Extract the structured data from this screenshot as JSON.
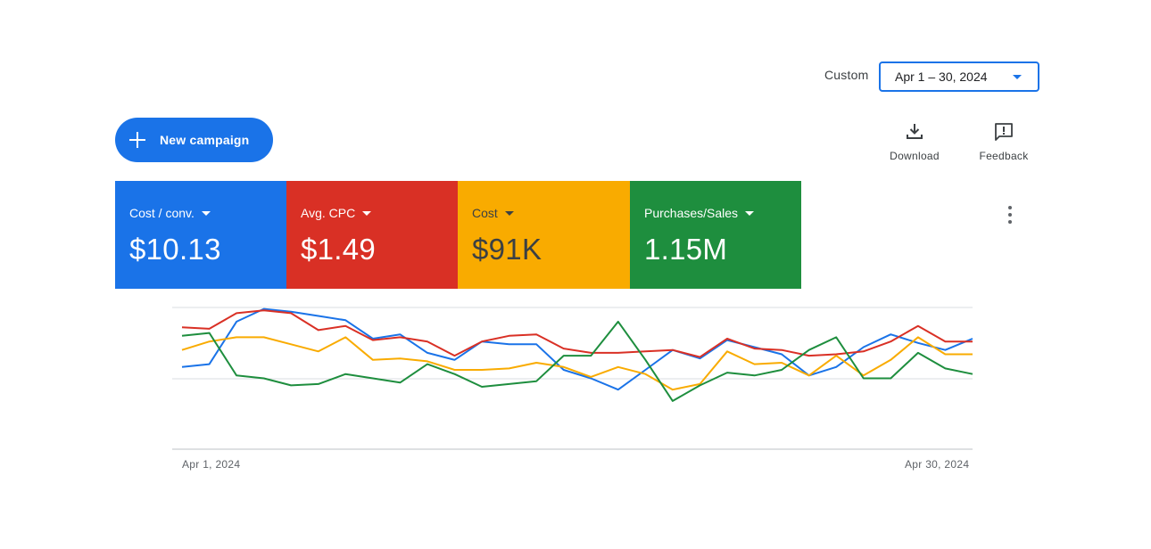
{
  "date_range": {
    "label": "Custom",
    "value": "Apr 1 – 30, 2024"
  },
  "new_campaign": {
    "label": "New campaign"
  },
  "tools": {
    "download": "Download",
    "feedback": "Feedback"
  },
  "metrics": [
    {
      "name": "Cost / conv.",
      "value": "$10.13",
      "color": "#1a73e8"
    },
    {
      "name": "Avg. CPC",
      "value": "$1.49",
      "color": "#d93025"
    },
    {
      "name": "Cost",
      "value": "$91K",
      "color": "#f9ab00"
    },
    {
      "name": "Purchases/Sales",
      "value": "1.15M",
      "color": "#1e8e3e"
    }
  ],
  "chart_data": {
    "type": "line",
    "x_start": "Apr 1, 2024",
    "x_end": "Apr 30, 2024",
    "grid": true,
    "series": [
      {
        "color": "#1a73e8",
        "values": [
          0.58,
          0.6,
          0.9,
          0.99,
          0.97,
          0.94,
          0.91,
          0.78,
          0.81,
          0.68,
          0.63,
          0.76,
          0.74,
          0.74,
          0.56,
          0.5,
          0.42,
          0.56,
          0.7,
          0.64,
          0.77,
          0.72,
          0.67,
          0.52,
          0.58,
          0.72,
          0.81,
          0.75,
          0.7,
          0.78
        ]
      },
      {
        "color": "#d93025",
        "values": [
          0.86,
          0.85,
          0.96,
          0.98,
          0.96,
          0.84,
          0.87,
          0.77,
          0.79,
          0.76,
          0.66,
          0.76,
          0.8,
          0.81,
          0.71,
          0.68,
          0.68,
          0.69,
          0.7,
          0.65,
          0.78,
          0.71,
          0.7,
          0.66,
          0.67,
          0.69,
          0.76,
          0.87,
          0.76,
          0.76
        ]
      },
      {
        "color": "#f9ab00",
        "values": [
          0.7,
          0.76,
          0.79,
          0.79,
          0.74,
          0.69,
          0.79,
          0.63,
          0.64,
          0.62,
          0.56,
          0.56,
          0.57,
          0.61,
          0.58,
          0.51,
          0.58,
          0.53,
          0.42,
          0.46,
          0.69,
          0.6,
          0.61,
          0.52,
          0.66,
          0.52,
          0.63,
          0.79,
          0.67,
          0.67
        ]
      },
      {
        "color": "#1e8e3e",
        "values": [
          0.8,
          0.82,
          0.52,
          0.5,
          0.45,
          0.46,
          0.53,
          0.5,
          0.47,
          0.6,
          0.53,
          0.44,
          0.46,
          0.48,
          0.66,
          0.66,
          0.9,
          0.63,
          0.34,
          0.45,
          0.54,
          0.52,
          0.56,
          0.7,
          0.79,
          0.5,
          0.5,
          0.68,
          0.57,
          0.53
        ]
      }
    ]
  }
}
